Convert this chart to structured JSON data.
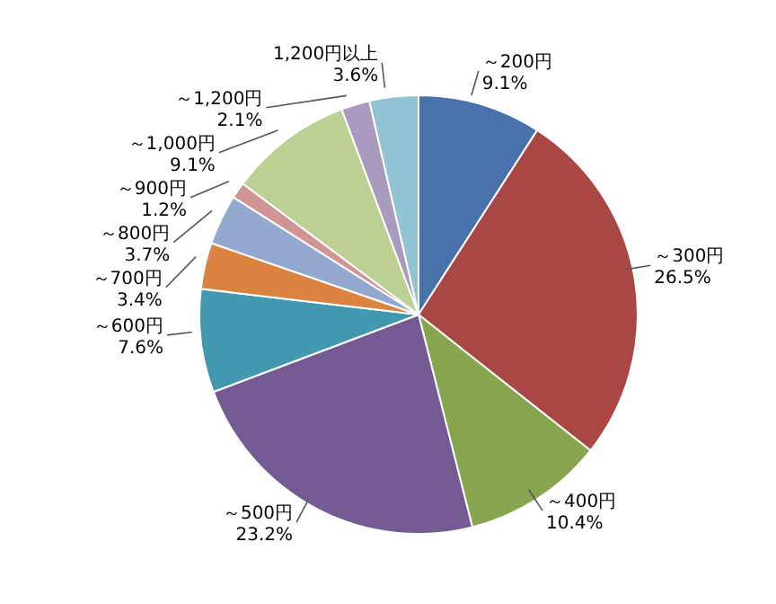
{
  "chart_data": {
    "type": "pie",
    "categories": [
      "～200円",
      "～300円",
      "～400円",
      "～500円",
      "～600円",
      "～700円",
      "～800円",
      "～900円",
      "～1,000円",
      "～1,200円",
      "1,200円以上"
    ],
    "values": [
      9.1,
      26.5,
      10.4,
      23.2,
      7.6,
      3.4,
      3.7,
      1.2,
      9.1,
      2.1,
      3.6
    ],
    "value_labels": [
      "9.1%",
      "26.5%",
      "10.4%",
      "23.2%",
      "7.6%",
      "3.4%",
      "3.7%",
      "1.2%",
      "9.1%",
      "2.1%",
      "3.6%"
    ],
    "colors": [
      "#4a72aa",
      "#a94744",
      "#89a44e",
      "#735a92",
      "#4298ae",
      "#db8441",
      "#93a9cf",
      "#d09493",
      "#bcd094",
      "#a99bbd",
      "#92c3d4"
    ],
    "legend": false
  }
}
